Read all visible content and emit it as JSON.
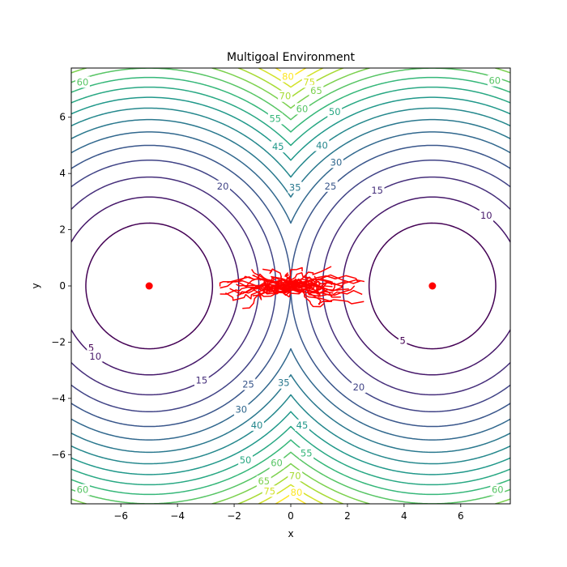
{
  "chart_data": {
    "type": "contour",
    "title": "Multigoal Environment",
    "xlabel": "x",
    "ylabel": "y",
    "xlim": [
      -7.75,
      7.75
    ],
    "ylim": [
      -7.75,
      7.75
    ],
    "xticks": [
      -6,
      -4,
      -2,
      0,
      2,
      4,
      6
    ],
    "yticks": [
      -6,
      -4,
      -2,
      0,
      2,
      4,
      6
    ],
    "xtick_labels": [
      "−6",
      "−4",
      "−2",
      "0",
      "2",
      "4",
      "6"
    ],
    "ytick_labels": [
      "−6",
      "−4",
      "−2",
      "0",
      "2",
      "4",
      "6"
    ],
    "goals": [
      {
        "x": -5,
        "y": 0
      },
      {
        "x": 5,
        "y": 0
      }
    ],
    "goal_color": "#ff0000",
    "contour_levels": [
      5,
      10,
      15,
      20,
      25,
      30,
      35,
      40,
      45,
      50,
      55,
      60,
      65,
      70,
      75,
      80
    ],
    "contour_colormap": "viridis",
    "contour_labels": [
      {
        "level": 60,
        "x": -7.35,
        "y": 7.25
      },
      {
        "level": 80,
        "x": -0.1,
        "y": 7.45
      },
      {
        "level": 75,
        "x": 0.65,
        "y": 7.25
      },
      {
        "level": 70,
        "x": -0.2,
        "y": 6.75
      },
      {
        "level": 65,
        "x": 0.9,
        "y": 6.95
      },
      {
        "level": 60,
        "x": 0.4,
        "y": 6.3
      },
      {
        "level": 50,
        "x": 1.55,
        "y": 6.2
      },
      {
        "level": 60,
        "x": 7.2,
        "y": 7.3
      },
      {
        "level": 55,
        "x": -0.55,
        "y": 5.95
      },
      {
        "level": 45,
        "x": -0.45,
        "y": 4.95
      },
      {
        "level": 40,
        "x": 1.1,
        "y": 5.0
      },
      {
        "level": 30,
        "x": 1.6,
        "y": 4.4
      },
      {
        "level": 35,
        "x": 0.15,
        "y": 3.5
      },
      {
        "level": 25,
        "x": 1.4,
        "y": 3.55
      },
      {
        "level": 20,
        "x": -2.4,
        "y": 3.55
      },
      {
        "level": 15,
        "x": 3.05,
        "y": 3.4
      },
      {
        "level": 10,
        "x": 6.9,
        "y": 2.5
      },
      {
        "level": 5,
        "x": -7.05,
        "y": -2.2
      },
      {
        "level": 10,
        "x": -6.9,
        "y": -2.5
      },
      {
        "level": 15,
        "x": -3.15,
        "y": -3.35
      },
      {
        "level": 5,
        "x": 3.95,
        "y": -1.95
      },
      {
        "level": 25,
        "x": -1.5,
        "y": -3.5
      },
      {
        "level": 35,
        "x": -0.25,
        "y": -3.45
      },
      {
        "level": 20,
        "x": 2.4,
        "y": -3.6
      },
      {
        "level": 30,
        "x": -1.75,
        "y": -4.4
      },
      {
        "level": 45,
        "x": 0.4,
        "y": -4.95
      },
      {
        "level": 40,
        "x": -1.2,
        "y": -4.95
      },
      {
        "level": 55,
        "x": 0.55,
        "y": -5.95
      },
      {
        "level": 50,
        "x": -1.6,
        "y": -6.2
      },
      {
        "level": 60,
        "x": -0.5,
        "y": -6.3
      },
      {
        "level": 70,
        "x": 0.15,
        "y": -6.75
      },
      {
        "level": 65,
        "x": -0.95,
        "y": -6.95
      },
      {
        "level": 75,
        "x": -0.75,
        "y": -7.3
      },
      {
        "level": 80,
        "x": 0.2,
        "y": -7.35
      },
      {
        "level": 60,
        "x": -7.35,
        "y": -7.25
      },
      {
        "level": 60,
        "x": 7.3,
        "y": -7.25
      }
    ],
    "trajectories": {
      "color": "#ff0000",
      "count": 50,
      "x_range": [
        -2.5,
        2.6
      ],
      "y_range": [
        -0.8,
        0.9
      ]
    }
  }
}
